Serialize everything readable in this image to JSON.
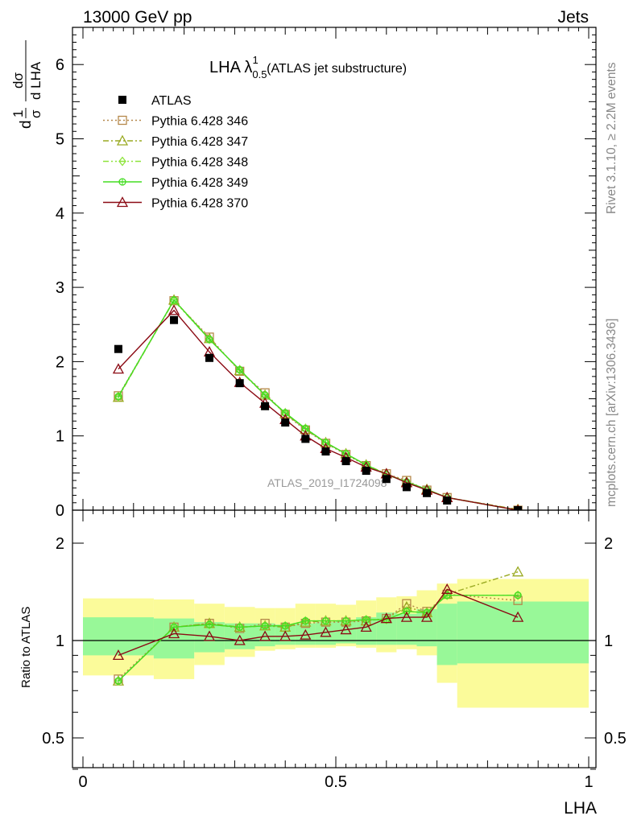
{
  "header": {
    "left": "13000 GeV pp",
    "right": "Jets"
  },
  "side_labels": {
    "rivet": "Rivet 3.1.10, ≥ 2.2M events",
    "mcplots": "mcplots.cern.ch [arXiv:1306.3436]"
  },
  "watermark": "ATLAS_2019_I1724098",
  "colors": {
    "atlas": "#000000",
    "p346": "#b5884a",
    "p347": "#9aaa22",
    "p348": "#8ee43c",
    "p349": "#44dd22",
    "p370": "#8b0a14",
    "band_outer": "#fbfb9a",
    "band_inner": "#98f898"
  },
  "chart_data": [
    {
      "type": "line",
      "panel": "main",
      "title": {
        "main": "LHA λ",
        "sup": "1",
        "sub": "0.5",
        "rest": " (ATLAS jet substructure)"
      },
      "ylabel": {
        "frac1": "1",
        "den1": "σ",
        "num2": "dσ",
        "den2": "d LHA"
      },
      "xlim": [
        0,
        1
      ],
      "ylim": [
        0,
        6.5
      ],
      "yticks": [
        "0",
        "1",
        "2",
        "3",
        "4",
        "5",
        "6"
      ],
      "grid": false,
      "legend_position": "top-left",
      "x": [
        0.07,
        0.18,
        0.25,
        0.31,
        0.36,
        0.4,
        0.44,
        0.48,
        0.52,
        0.56,
        0.6,
        0.64,
        0.68,
        0.72,
        0.86
      ],
      "series": [
        {
          "name": "ATLAS",
          "marker": "square-filled",
          "line": "none",
          "color": "#000000",
          "values": [
            2.17,
            2.56,
            2.05,
            1.71,
            1.4,
            1.18,
            0.96,
            0.79,
            0.66,
            0.53,
            0.42,
            0.31,
            0.23,
            0.13,
            0.0
          ]
        },
        {
          "name": "Pythia 6.428 346",
          "marker": "square-open",
          "line": "dotted",
          "color": "#b5884a",
          "values": [
            1.54,
            2.82,
            2.33,
            1.87,
            1.58,
            1.29,
            1.08,
            0.9,
            0.75,
            0.6,
            0.49,
            0.4,
            0.27,
            0.17,
            0.0
          ]
        },
        {
          "name": "Pythia 6.428 347",
          "marker": "triangle-open",
          "line": "dashdot",
          "color": "#9aaa22",
          "values": [
            1.52,
            2.83,
            2.31,
            1.88,
            1.55,
            1.3,
            1.09,
            0.91,
            0.76,
            0.61,
            0.49,
            0.38,
            0.28,
            0.17,
            0.01
          ]
        },
        {
          "name": "Pythia 6.428 348",
          "marker": "diamond-open",
          "line": "dashdotdot",
          "color": "#8ee43c",
          "values": [
            1.53,
            2.82,
            2.3,
            1.89,
            1.55,
            1.31,
            1.1,
            0.91,
            0.76,
            0.61,
            0.48,
            0.38,
            0.28,
            0.17,
            0.0
          ]
        },
        {
          "name": "Pythia 6.428 349",
          "marker": "circle-cross",
          "line": "solid",
          "color": "#44dd22",
          "values": [
            1.53,
            2.83,
            2.3,
            1.89,
            1.55,
            1.31,
            1.1,
            0.91,
            0.76,
            0.61,
            0.48,
            0.38,
            0.28,
            0.17,
            0.0
          ]
        },
        {
          "name": "Pythia 6.428 370",
          "marker": "triangle-open",
          "line": "solid",
          "color": "#8b0a14",
          "values": [
            1.9,
            2.69,
            2.13,
            1.72,
            1.44,
            1.22,
            1.0,
            0.83,
            0.71,
            0.58,
            0.49,
            0.37,
            0.27,
            0.17,
            0.0
          ]
        }
      ]
    },
    {
      "type": "line",
      "panel": "ratio",
      "ylabel": "Ratio to ATLAS",
      "xlabel": "LHA",
      "xlim": [
        0,
        1
      ],
      "ylim": [
        0.4,
        2.3
      ],
      "yticks": [
        "0.5",
        "1",
        "2"
      ],
      "xticks": [
        "0",
        "0.5",
        "1"
      ],
      "reference_line": 1,
      "bins": [
        {
          "lo": 0.0,
          "hi": 0.14,
          "outer": [
            0.78,
            1.35
          ],
          "inner": [
            0.9,
            1.18
          ]
        },
        {
          "lo": 0.14,
          "hi": 0.22,
          "outer": [
            0.76,
            1.34
          ],
          "inner": [
            0.88,
            1.17
          ]
        },
        {
          "lo": 0.22,
          "hi": 0.28,
          "outer": [
            0.84,
            1.3
          ],
          "inner": [
            0.92,
            1.14
          ]
        },
        {
          "lo": 0.28,
          "hi": 0.34,
          "outer": [
            0.89,
            1.27
          ],
          "inner": [
            0.94,
            1.13
          ]
        },
        {
          "lo": 0.34,
          "hi": 0.38,
          "outer": [
            0.93,
            1.26
          ],
          "inner": [
            0.96,
            1.13
          ]
        },
        {
          "lo": 0.38,
          "hi": 0.42,
          "outer": [
            0.94,
            1.26
          ],
          "inner": [
            0.97,
            1.12
          ]
        },
        {
          "lo": 0.42,
          "hi": 0.46,
          "outer": [
            0.95,
            1.3
          ],
          "inner": [
            0.97,
            1.13
          ]
        },
        {
          "lo": 0.46,
          "hi": 0.5,
          "outer": [
            0.95,
            1.3
          ],
          "inner": [
            0.97,
            1.14
          ]
        },
        {
          "lo": 0.5,
          "hi": 0.54,
          "outer": [
            0.96,
            1.29
          ],
          "inner": [
            0.98,
            1.15
          ]
        },
        {
          "lo": 0.54,
          "hi": 0.58,
          "outer": [
            0.95,
            1.33
          ],
          "inner": [
            0.97,
            1.18
          ]
        },
        {
          "lo": 0.58,
          "hi": 0.62,
          "outer": [
            0.92,
            1.36
          ],
          "inner": [
            0.97,
            1.22
          ]
        },
        {
          "lo": 0.62,
          "hi": 0.66,
          "outer": [
            0.94,
            1.37
          ],
          "inner": [
            0.97,
            1.21
          ]
        },
        {
          "lo": 0.66,
          "hi": 0.7,
          "outer": [
            0.9,
            1.43
          ],
          "inner": [
            0.96,
            1.25
          ]
        },
        {
          "lo": 0.7,
          "hi": 0.74,
          "outer": [
            0.74,
            1.5
          ],
          "inner": [
            0.84,
            1.3
          ]
        },
        {
          "lo": 0.74,
          "hi": 1.0,
          "outer": [
            0.62,
            1.55
          ],
          "inner": [
            0.85,
            1.32
          ]
        }
      ],
      "x": [
        0.07,
        0.18,
        0.25,
        0.31,
        0.36,
        0.4,
        0.44,
        0.48,
        0.52,
        0.56,
        0.6,
        0.64,
        0.68,
        0.72,
        0.86
      ],
      "series": [
        {
          "name": "Pythia 6.428 346",
          "color": "#b5884a",
          "marker": "square-open",
          "line": "dotted",
          "values": [
            0.76,
            1.1,
            1.13,
            1.09,
            1.13,
            1.1,
            1.13,
            1.14,
            1.14,
            1.15,
            1.17,
            1.3,
            1.23,
            1.39,
            1.33
          ]
        },
        {
          "name": "Pythia 6.428 347",
          "color": "#9aaa22",
          "marker": "triangle-open",
          "line": "dashdot",
          "values": [
            0.75,
            1.1,
            1.13,
            1.1,
            1.11,
            1.1,
            1.14,
            1.15,
            1.15,
            1.15,
            1.17,
            1.27,
            1.22,
            1.39,
            1.63
          ]
        },
        {
          "name": "Pythia 6.428 348",
          "color": "#8ee43c",
          "marker": "diamond-open",
          "line": "dashdotdot",
          "values": [
            0.75,
            1.1,
            1.12,
            1.1,
            1.11,
            1.11,
            1.15,
            1.15,
            1.15,
            1.16,
            1.16,
            1.23,
            1.22,
            1.38,
            1.38
          ]
        },
        {
          "name": "Pythia 6.428 349",
          "color": "#44dd22",
          "marker": "circle-cross",
          "line": "solid",
          "values": [
            0.75,
            1.1,
            1.12,
            1.1,
            1.11,
            1.11,
            1.15,
            1.15,
            1.15,
            1.16,
            1.16,
            1.23,
            1.22,
            1.38,
            1.38
          ]
        },
        {
          "name": "Pythia 6.428 370",
          "color": "#8b0a14",
          "marker": "triangle-open",
          "line": "solid",
          "values": [
            0.9,
            1.05,
            1.03,
            1.0,
            1.03,
            1.03,
            1.04,
            1.06,
            1.08,
            1.1,
            1.17,
            1.18,
            1.18,
            1.44,
            1.18
          ]
        }
      ]
    }
  ]
}
